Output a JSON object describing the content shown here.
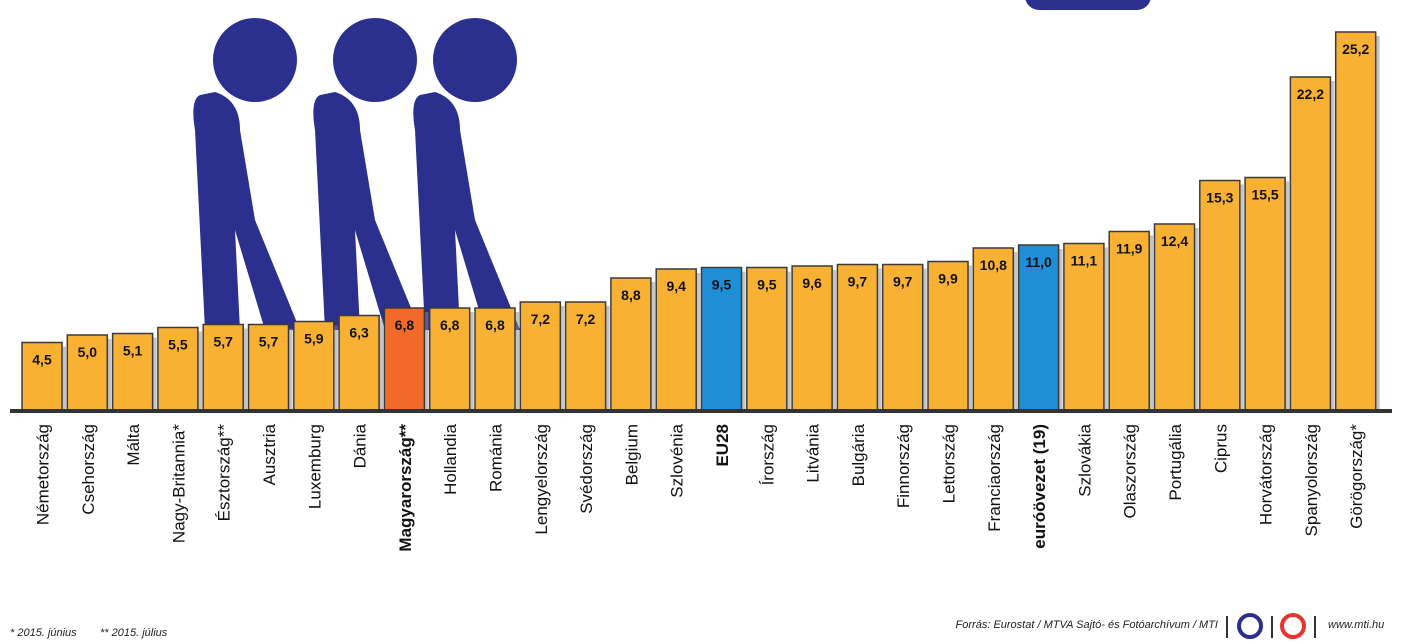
{
  "chart_data": {
    "type": "bar",
    "categories": [
      "Németország",
      "Csehország",
      "Málta",
      "Nagy-Britannia*",
      "Észtország**",
      "Ausztria",
      "Luxemburg",
      "Dánia",
      "Magyarország**",
      "Hollandia",
      "Románia",
      "Lengyelország",
      "Svédország",
      "Belgium",
      "Szlovénia",
      "EU28",
      "Írország",
      "Litvánia",
      "Bulgária",
      "Finnország",
      "Lettország",
      "Franciaország",
      "euróövezet (19)",
      "Szlovákia",
      "Olaszország",
      "Portugália",
      "Ciprus",
      "Horvátország",
      "Spanyolország",
      "Görögország*"
    ],
    "values": [
      4.5,
      5.0,
      5.1,
      5.5,
      5.7,
      5.7,
      5.9,
      6.3,
      6.8,
      6.8,
      6.8,
      7.2,
      7.2,
      8.8,
      9.4,
      9.5,
      9.5,
      9.6,
      9.7,
      9.7,
      9.9,
      10.8,
      11.0,
      11.1,
      11.9,
      12.4,
      15.3,
      15.5,
      22.2,
      25.2
    ],
    "value_labels": [
      "4,5",
      "5,0",
      "5,1",
      "5,5",
      "5,7",
      "5,7",
      "5,9",
      "6,3",
      "6,8",
      "6,8",
      "6,8",
      "7,2",
      "7,2",
      "8,8",
      "9,4",
      "9,5",
      "9,5",
      "9,6",
      "9,7",
      "9,7",
      "9,9",
      "10,8",
      "11,0",
      "11,1",
      "11,9",
      "12,4",
      "15,3",
      "15,5",
      "22,2",
      "25,2"
    ],
    "color": "#f8b133",
    "colors": [
      "#f8b133",
      "#f8b133",
      "#f8b133",
      "#f8b133",
      "#f8b133",
      "#f8b133",
      "#f8b133",
      "#f8b133",
      "#f26b2b",
      "#f8b133",
      "#f8b133",
      "#f8b133",
      "#f8b133",
      "#f8b133",
      "#f8b133",
      "#1e8fd6",
      "#f8b133",
      "#f8b133",
      "#f8b133",
      "#f8b133",
      "#f8b133",
      "#f8b133",
      "#1e8fd6",
      "#f8b133",
      "#f8b133",
      "#f8b133",
      "#f8b133",
      "#f8b133",
      "#f8b133",
      "#f8b133"
    ],
    "footnotes": [
      "* 2015. június",
      "** 2015. július"
    ],
    "source": "Forrás: Eurostat / MTVA Sajtó- és Fotóarchívum / MTI",
    "website": "www.mti.hu"
  }
}
